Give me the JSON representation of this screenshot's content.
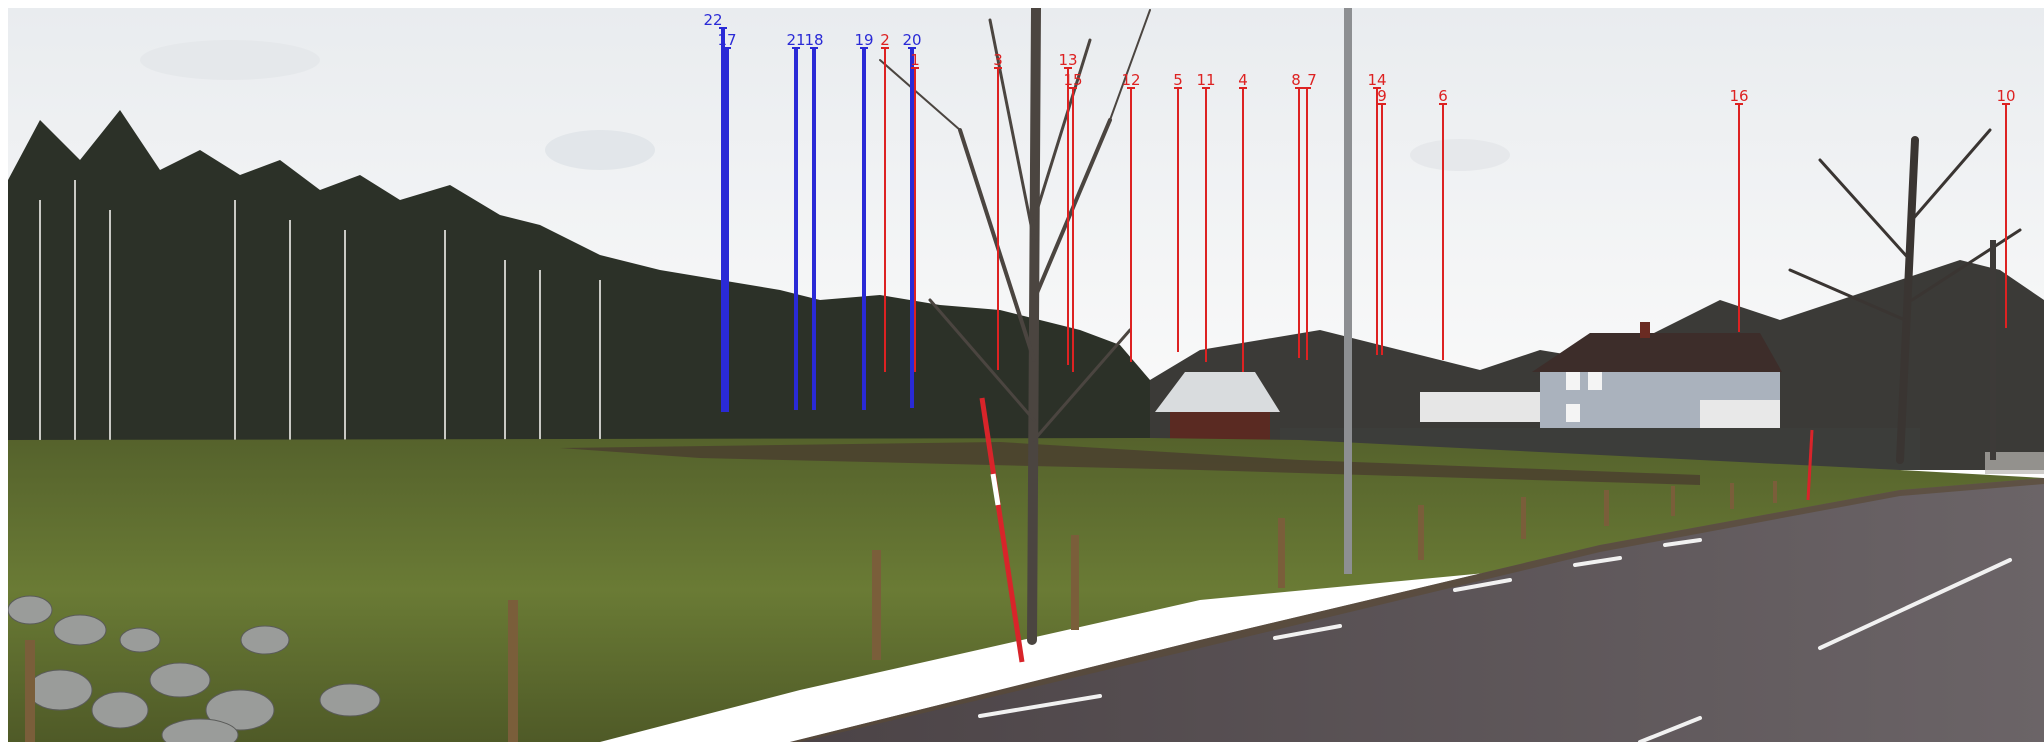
{
  "scene": {
    "kind": "panorama photograph with turbine visualization markers",
    "marker_colors": {
      "red": "#dd2222",
      "blue": "#2a2ad6"
    }
  },
  "markers": [
    {
      "label": "22",
      "color": "blue"
    },
    {
      "label": "17",
      "color": "blue"
    },
    {
      "label": "21",
      "color": "blue"
    },
    {
      "label": "18",
      "color": "blue"
    },
    {
      "label": "19",
      "color": "blue"
    },
    {
      "label": "2",
      "color": "red"
    },
    {
      "label": "20",
      "color": "blue"
    },
    {
      "label": "1",
      "color": "red"
    },
    {
      "label": "3",
      "color": "red"
    },
    {
      "label": "13",
      "color": "red"
    },
    {
      "label": "15",
      "color": "red"
    },
    {
      "label": "12",
      "color": "red"
    },
    {
      "label": "5",
      "color": "red"
    },
    {
      "label": "11",
      "color": "red"
    },
    {
      "label": "4",
      "color": "red"
    },
    {
      "label": "8",
      "color": "red"
    },
    {
      "label": "7",
      "color": "red"
    },
    {
      "label": "14",
      "color": "red"
    },
    {
      "label": "9",
      "color": "red"
    },
    {
      "label": "6",
      "color": "red"
    },
    {
      "label": "16",
      "color": "red"
    },
    {
      "label": "10",
      "color": "red"
    }
  ]
}
